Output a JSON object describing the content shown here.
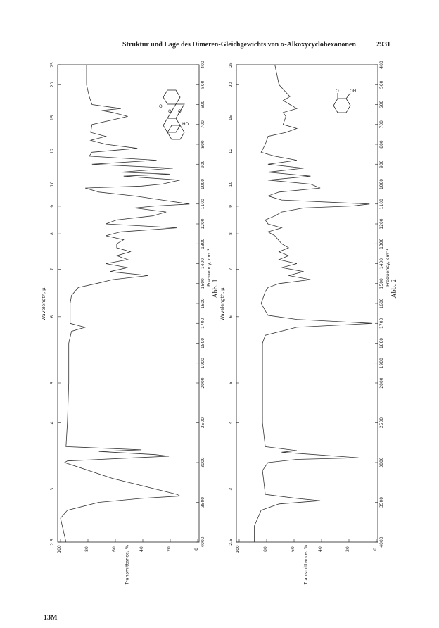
{
  "header": {
    "title": "Struktur und Lage des Dimeren-Gleichgewichts von α-Alkoxycyclohexanonen",
    "page_number": "2931"
  },
  "footer": "13M",
  "chart_data": [
    {
      "type": "line",
      "caption": "Abb. 1",
      "xlabel": "Frequency, cm⁻¹",
      "x2label": "Wavelength, μ",
      "ylabel": "Transmittance, %",
      "xlim": [
        4000,
        400
      ],
      "xticks": [
        4000,
        3500,
        3000,
        2500,
        2000,
        1900,
        1800,
        1700,
        1600,
        1500,
        1400,
        1300,
        1200,
        1100,
        1000,
        900,
        800,
        700,
        600,
        500,
        400
      ],
      "x2ticks": [
        2.5,
        3,
        4,
        5,
        6,
        7,
        8,
        9,
        10,
        12,
        15,
        20,
        25
      ],
      "ylim": [
        0,
        100
      ],
      "yticks": [
        100,
        80,
        60,
        40,
        20,
        0
      ],
      "annotations": [
        "OH",
        "O",
        "O",
        "HO"
      ],
      "x": [
        400,
        500,
        560,
        600,
        620,
        630,
        640,
        660,
        700,
        740,
        760,
        780,
        800,
        820,
        840,
        860,
        880,
        900,
        920,
        940,
        950,
        960,
        980,
        1000,
        1010,
        1020,
        1040,
        1060,
        1080,
        1100,
        1110,
        1120,
        1140,
        1160,
        1180,
        1200,
        1220,
        1240,
        1260,
        1280,
        1300,
        1320,
        1340,
        1360,
        1380,
        1400,
        1420,
        1440,
        1460,
        1480,
        1500,
        1520,
        1560,
        1600,
        1700,
        1720,
        1740,
        1800,
        2000,
        2500,
        2800,
        2840,
        2860,
        2900,
        2920,
        2940,
        2980,
        3000,
        3200,
        3400,
        3420,
        3450,
        3500,
        3600,
        3700,
        4000
      ],
      "series": [
        {
          "color": "#333333",
          "values": [
            81,
            81,
            79,
            77,
            56,
            70,
            62,
            51,
            77,
            78,
            67,
            78,
            67,
            44,
            77,
            79,
            30,
            77,
            18,
            56,
            20,
            54,
            13,
            26,
            41,
            82,
            72,
            46,
            26,
            6,
            31,
            46,
            23,
            33,
            59,
            67,
            15,
            56,
            67,
            54,
            59,
            59,
            49,
            59,
            51,
            67,
            51,
            64,
            36,
            62,
            74,
            87,
            92,
            93,
            93,
            82,
            92,
            94,
            94,
            95,
            96,
            41,
            72,
            31,
            21,
            46,
            95,
            97,
            62,
            15,
            13,
            41,
            72,
            95,
            100,
            96
          ]
        }
      ]
    },
    {
      "type": "line",
      "caption": "Abb. 2",
      "xlabel": "Frequency, cm⁻¹",
      "x2label": "Wavelength, μ",
      "ylabel": "Transmittance, %",
      "xlim": [
        4000,
        400
      ],
      "xticks": [
        4000,
        3500,
        3000,
        2500,
        2000,
        1900,
        1800,
        1700,
        1600,
        1500,
        1400,
        1300,
        1200,
        1100,
        1000,
        900,
        800,
        700,
        600,
        500,
        400
      ],
      "x2ticks": [
        2.5,
        3,
        4,
        5,
        6,
        7,
        8,
        9,
        10,
        12,
        15,
        20,
        25
      ],
      "ylim": [
        0,
        100
      ],
      "yticks": [
        100,
        80,
        60,
        40,
        20,
        0
      ],
      "annotations": [
        "O",
        "OH"
      ],
      "x": [
        400,
        500,
        560,
        580,
        600,
        620,
        640,
        660,
        700,
        720,
        740,
        760,
        800,
        840,
        860,
        880,
        900,
        920,
        940,
        960,
        980,
        1000,
        1020,
        1040,
        1060,
        1080,
        1100,
        1110,
        1120,
        1140,
        1160,
        1180,
        1200,
        1220,
        1240,
        1260,
        1300,
        1320,
        1340,
        1360,
        1380,
        1400,
        1420,
        1440,
        1460,
        1480,
        1500,
        1520,
        1540,
        1600,
        1660,
        1680,
        1700,
        1720,
        1760,
        1800,
        2000,
        2500,
        2800,
        2850,
        2870,
        2940,
        2960,
        3000,
        3100,
        3400,
        3450,
        3480,
        3520,
        3600,
        3800,
        4000
      ],
      "series": [
        {
          "color": "#333333",
          "values": [
            74,
            71,
            63,
            68,
            63,
            58,
            68,
            66,
            68,
            58,
            66,
            79,
            81,
            84,
            74,
            58,
            79,
            53,
            79,
            48,
            79,
            48,
            41,
            71,
            79,
            69,
            5,
            18,
            53,
            69,
            74,
            81,
            79,
            69,
            79,
            74,
            69,
            64,
            71,
            64,
            71,
            58,
            69,
            53,
            64,
            48,
            71,
            79,
            81,
            84,
            79,
            58,
            3,
            58,
            81,
            83,
            83,
            83,
            81,
            58,
            69,
            13,
            58,
            79,
            83,
            81,
            58,
            41,
            71,
            84,
            89,
            89
          ]
        }
      ]
    }
  ]
}
